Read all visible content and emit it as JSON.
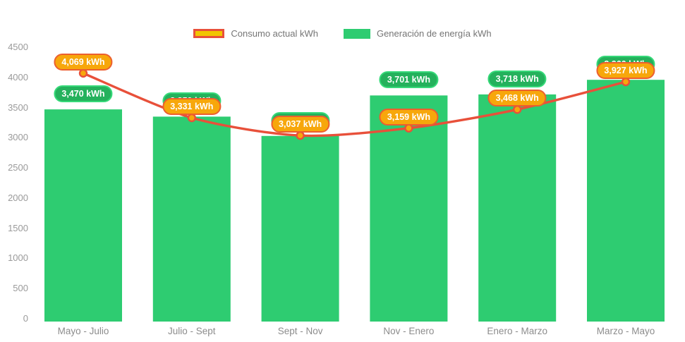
{
  "chart": {
    "legend": [
      {
        "id": "consumo",
        "label": "Consumo actual kWh",
        "type": "line"
      },
      {
        "id": "generacion",
        "label": "Generación de energía kWh",
        "type": "bar"
      }
    ],
    "colors": {
      "bar": "#2ecc71",
      "bar_badge_bg": "#24b15c",
      "bar_badge_border": "#36d979",
      "line": "#e8503a",
      "marker_fill": "#f7a70b",
      "orange_badge_bg": "#f7a70b",
      "orange_badge_border": "#ec5f2f",
      "legend_line_fill": "#f2c500",
      "axis_text": "#9a9a9a",
      "legend_text": "#757575"
    }
  },
  "chart_data": {
    "type": "bar+line",
    "categories": [
      "Mayo - Julio",
      "Julio - Sept",
      "Sept - Nov",
      "Nov - Enero",
      "Enero - Marzo",
      "Marzo - Mayo"
    ],
    "series": [
      {
        "name": "Consumo actual kWh",
        "type": "line",
        "values": [
          4069,
          3331,
          3037,
          3159,
          3468,
          3927
        ],
        "labels": [
          "4,069 kWh",
          "3,331 kWh",
          "3,037 kWh",
          "3,159 kWh",
          "3,468 kWh",
          "3,927 kWh"
        ]
      },
      {
        "name": "Generación de energía kWh",
        "type": "bar",
        "values": [
          3470,
          3350,
          3030,
          3701,
          3718,
          3960
        ],
        "labels": [
          "3,470 kWh",
          "3,350 kWh",
          "3,030 kWh",
          "3,701 kWh",
          "3,718 kWh",
          "3,960 kWh"
        ]
      }
    ],
    "ylim": [
      0,
      4500
    ],
    "yticks": [
      4500,
      4000,
      3500,
      3000,
      2500,
      2000,
      1500,
      1000,
      500,
      0
    ],
    "grid": false,
    "legend_position": "top"
  }
}
